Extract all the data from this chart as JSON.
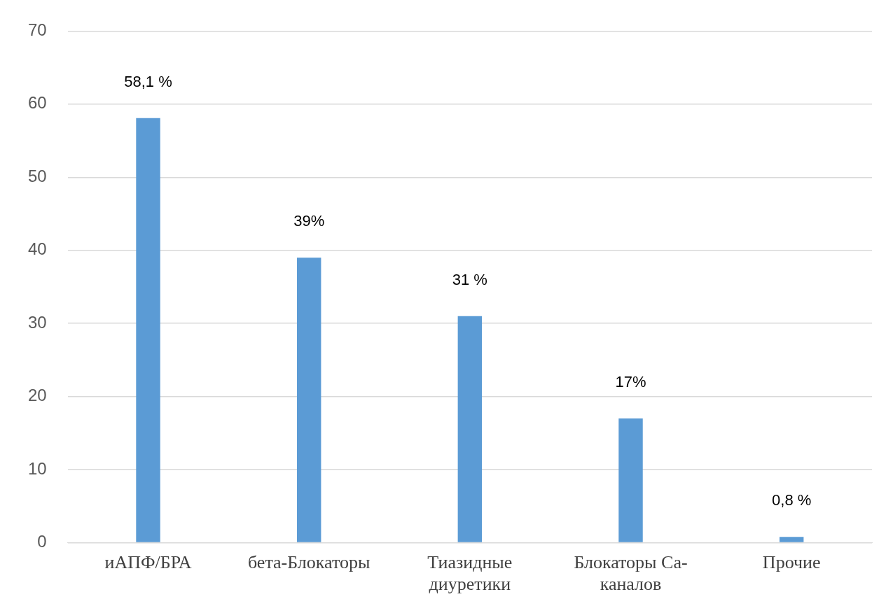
{
  "chart_data": {
    "type": "bar",
    "categories": [
      "иАПФ/БРА",
      "бета-Блокаторы",
      "Тиазидные диуретики",
      "Блокаторы Са-каналов",
      "Прочие"
    ],
    "values": [
      58.1,
      39,
      31,
      17,
      0.8
    ],
    "value_labels": [
      "58,1 %",
      "39%",
      "31 %",
      "17%",
      "0,8 %"
    ],
    "color": "#5b9bd5",
    "ylim": [
      0,
      70
    ],
    "yticks": [
      0,
      10,
      20,
      30,
      40,
      50,
      60,
      70
    ],
    "grid": "y",
    "legend": false
  }
}
